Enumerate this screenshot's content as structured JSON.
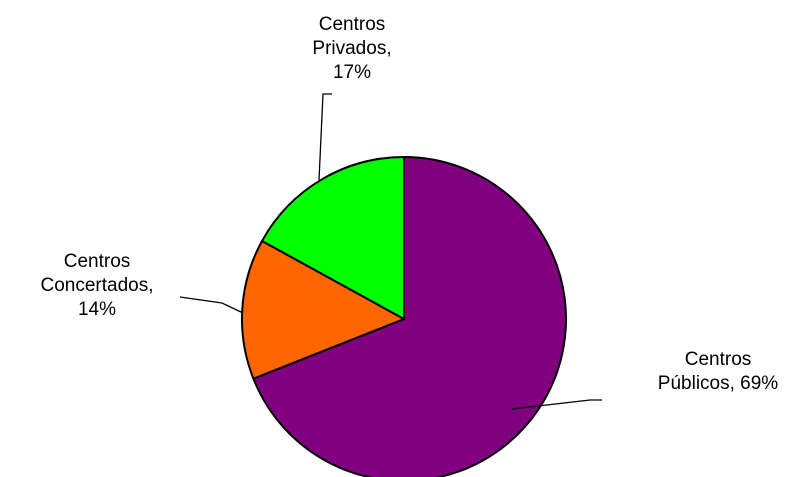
{
  "chart_data": {
    "type": "pie",
    "title": "",
    "slices": [
      {
        "category": "Centros Públicos",
        "value": 69,
        "value_label": "69%",
        "label_lines": [
          "Centros",
          "Públicos, 69%"
        ],
        "color": "#800080"
      },
      {
        "category": "Centros Concertados",
        "value": 14,
        "value_label": "14%",
        "label_lines": [
          "Centros",
          "Concertados,",
          "14%"
        ],
        "color": "#FF6600"
      },
      {
        "category": "Centros Privados",
        "value": 17,
        "value_label": "17%",
        "label_lines": [
          "Centros",
          "Privados,",
          "17%"
        ],
        "color": "#00FF00"
      }
    ],
    "start_angle_deg": 0,
    "direction": "clockwise",
    "slice_border_color": "#000000",
    "legend": "none"
  }
}
